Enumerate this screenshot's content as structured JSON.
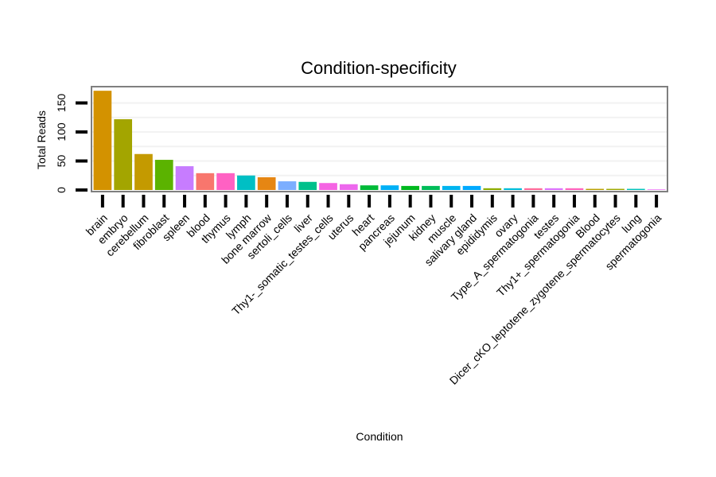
{
  "chart_data": {
    "type": "bar",
    "title": "Condition-specificity",
    "xlabel": "Condition",
    "ylabel": "Total Reads",
    "ylim": [
      0,
      178
    ],
    "yticks": [
      0,
      50,
      100,
      150
    ],
    "grid": true,
    "legend": "none",
    "categories": [
      "brain",
      "embryo",
      "cerebellum",
      "fibroblast",
      "spleen",
      "blood",
      "thymus",
      "lymph",
      "bone marrow",
      "sertoli_cells",
      "liver",
      "Thy1-_somatic_testes_cells",
      "uterus",
      "heart",
      "pancreas",
      "jejunum",
      "kidney",
      "muscle",
      "salivary gland",
      "epididymis",
      "ovary",
      "Type_A_spermatogonia",
      "testes",
      "Thy1+_spermatogonia",
      "Blood",
      "Dicer_cKO_leptotene_zygotene_spermatocytes",
      "lung",
      "spermatogonia"
    ],
    "values": [
      171,
      122,
      62,
      52,
      41,
      29,
      29,
      25,
      22,
      15,
      14,
      12,
      10,
      8,
      8,
      7,
      7,
      7,
      7,
      3,
      3,
      3,
      3,
      3,
      2,
      2,
      2,
      1
    ],
    "colors": [
      "#D39200",
      "#A3A500",
      "#C49A00",
      "#5BB300",
      "#C77CFF",
      "#F8766D",
      "#FF61C3",
      "#00BFC4",
      "#E68613",
      "#7CAEFF",
      "#00C08B",
      "#F564E3",
      "#ED68ED",
      "#00BA38",
      "#00B0F6",
      "#00B81F",
      "#00BC59",
      "#00B4EF",
      "#00A9FF",
      "#8CAB00",
      "#00BCD8",
      "#FF6A98",
      "#DB72FB",
      "#FF62BC",
      "#B79F00",
      "#9CA700",
      "#00C0B8",
      "#E76BF3"
    ]
  }
}
